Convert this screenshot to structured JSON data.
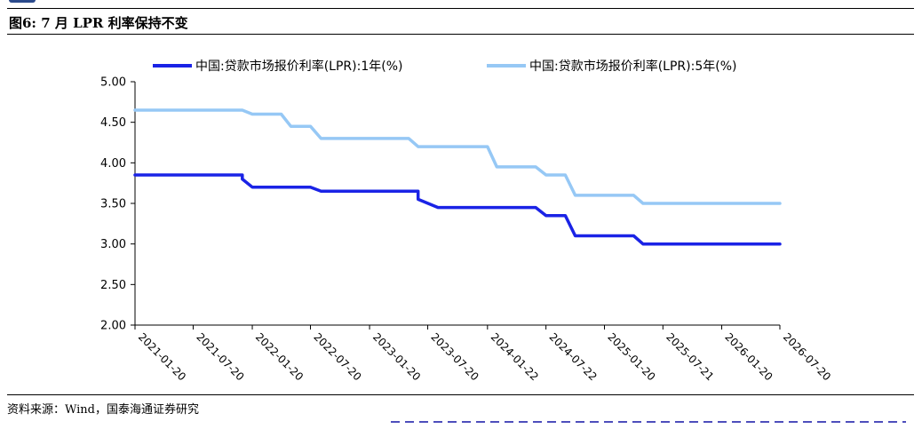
{
  "header": {
    "title": "图6:  7 月 LPR 利率保持不变"
  },
  "source": "资料来源：Wind，国泰海通证券研究",
  "colors": {
    "series_1y": "#1a23e6",
    "series_5y": "#96c8f5",
    "axis": "#000000"
  },
  "chart_data": {
    "type": "line",
    "x_tick_labels": [
      "2021-01-20",
      "2021-07-20",
      "2022-01-20",
      "2022-07-20",
      "2023-01-20",
      "2023-07-20",
      "2024-01-22",
      "2024-07-22",
      "2025-01-20",
      "2025-07-21",
      "2026-01-20",
      "2026-07-20"
    ],
    "y_tick_labels": [
      "5.00",
      "4.50",
      "4.00",
      "3.50",
      "3.00",
      "2.50",
      "2.00"
    ],
    "ylim": [
      2.0,
      5.0
    ],
    "xlim": [
      "2021-01-20",
      "2026-07-20"
    ],
    "legend_position": "top",
    "series": [
      {
        "name": "中国:贷款市场报价利率(LPR):1年(%)",
        "points": [
          [
            "2021-01-20",
            3.85
          ],
          [
            "2021-12-20",
            3.85
          ],
          [
            "2021-12-20",
            3.8
          ],
          [
            "2022-01-20",
            3.7
          ],
          [
            "2022-07-20",
            3.7
          ],
          [
            "2022-08-22",
            3.65
          ],
          [
            "2023-06-20",
            3.65
          ],
          [
            "2023-06-20",
            3.55
          ],
          [
            "2023-08-21",
            3.45
          ],
          [
            "2024-06-20",
            3.45
          ],
          [
            "2024-07-22",
            3.35
          ],
          [
            "2024-09-20",
            3.35
          ],
          [
            "2024-10-21",
            3.1
          ],
          [
            "2025-04-21",
            3.1
          ],
          [
            "2025-05-20",
            3.0
          ],
          [
            "2026-07-20",
            3.0
          ]
        ]
      },
      {
        "name": "中国:贷款市场报价利率(LPR):5年(%)",
        "points": [
          [
            "2021-01-20",
            4.65
          ],
          [
            "2021-12-20",
            4.65
          ],
          [
            "2022-01-20",
            4.6
          ],
          [
            "2022-04-20",
            4.6
          ],
          [
            "2022-05-20",
            4.45
          ],
          [
            "2022-07-20",
            4.45
          ],
          [
            "2022-08-22",
            4.3
          ],
          [
            "2023-05-22",
            4.3
          ],
          [
            "2023-06-20",
            4.2
          ],
          [
            "2024-01-22",
            4.2
          ],
          [
            "2024-02-20",
            3.95
          ],
          [
            "2024-06-20",
            3.95
          ],
          [
            "2024-07-22",
            3.85
          ],
          [
            "2024-09-20",
            3.85
          ],
          [
            "2024-10-21",
            3.6
          ],
          [
            "2025-04-21",
            3.6
          ],
          [
            "2025-05-20",
            3.5
          ],
          [
            "2026-07-20",
            3.5
          ]
        ]
      }
    ]
  }
}
